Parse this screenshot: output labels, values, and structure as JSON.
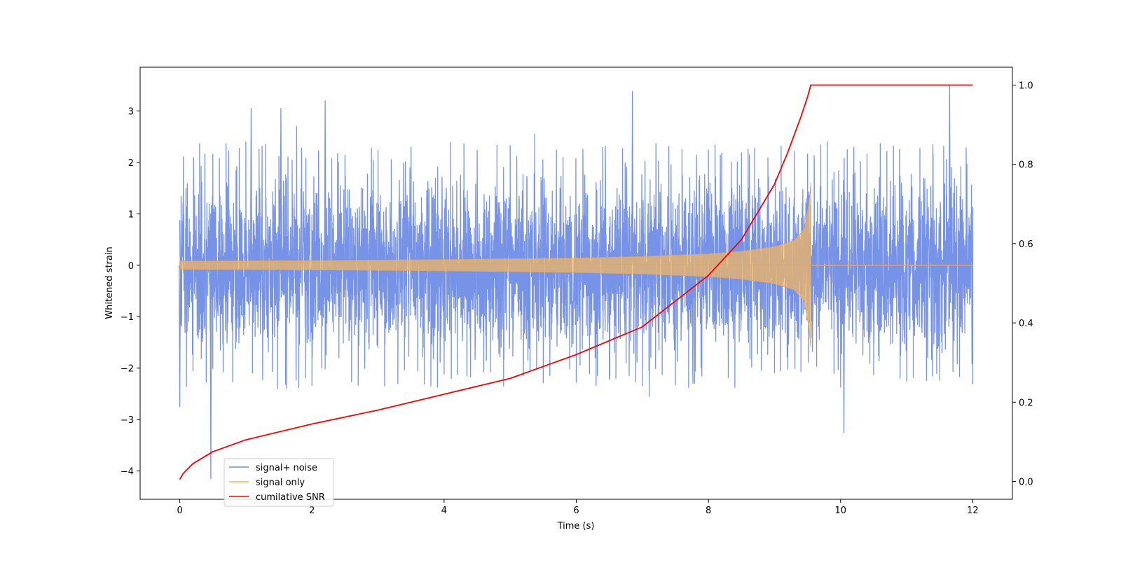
{
  "chart_data": {
    "type": "line",
    "title": "",
    "xlabel": "Time (s)",
    "ylabel": "Whitened strain",
    "y2label": "",
    "xlim": [
      -0.6,
      12.6
    ],
    "ylim": [
      -4.55,
      3.85
    ],
    "y2lim": [
      -0.045,
      1.045
    ],
    "xticks": [
      0,
      2,
      4,
      6,
      8,
      10,
      12
    ],
    "xtick_labels": [
      "0",
      "2",
      "4",
      "6",
      "8",
      "10",
      "12"
    ],
    "yticks": [
      -4,
      -3,
      -2,
      -1,
      0,
      1,
      2,
      3
    ],
    "ytick_labels": [
      "−4",
      "−3",
      "−2",
      "−1",
      "0",
      "1",
      "2",
      "3"
    ],
    "y2ticks": [
      0.0,
      0.2,
      0.4,
      0.6,
      0.8,
      1.0
    ],
    "y2tick_labels": [
      "0.0",
      "0.2",
      "0.4",
      "0.6",
      "0.8",
      "1.0"
    ],
    "grid": false,
    "legend_position": "lower-left",
    "merger_time": 9.55,
    "series": [
      {
        "name": "signal+ noise",
        "color": "#6b8ae6",
        "axis": "left",
        "description_level": "noise band approx. -2.3 to 2.4 with spikes",
        "notable_points": [
          {
            "x": 0.0,
            "y": -2.75
          },
          {
            "x": 0.47,
            "y": -4.15
          },
          {
            "x": 1.08,
            "y": 3.05
          },
          {
            "x": 1.53,
            "y": 3.05
          },
          {
            "x": 2.2,
            "y": 3.2
          },
          {
            "x": 6.85,
            "y": 3.38
          },
          {
            "x": 10.05,
            "y": -3.25
          },
          {
            "x": 11.65,
            "y": 3.5
          }
        ]
      },
      {
        "name": "signal only",
        "color": "#f5b55a",
        "axis": "left",
        "envelope": [
          {
            "x": 0.0,
            "amp": 0.08
          },
          {
            "x": 2.0,
            "amp": 0.09
          },
          {
            "x": 4.0,
            "amp": 0.11
          },
          {
            "x": 6.0,
            "amp": 0.14
          },
          {
            "x": 7.0,
            "amp": 0.17
          },
          {
            "x": 8.0,
            "amp": 0.22
          },
          {
            "x": 8.5,
            "amp": 0.27
          },
          {
            "x": 9.0,
            "amp": 0.36
          },
          {
            "x": 9.3,
            "amp": 0.48
          },
          {
            "x": 9.45,
            "amp": 0.7
          },
          {
            "x": 9.52,
            "amp": 1.2
          },
          {
            "x": 9.55,
            "amp": 1.6
          },
          {
            "x": 9.56,
            "amp": 0.0
          },
          {
            "x": 12.0,
            "amp": 0.0
          }
        ]
      },
      {
        "name": "cumilative SNR",
        "color": "#ff0000",
        "axis": "right",
        "x": [
          0.0,
          0.05,
          0.2,
          0.5,
          1.0,
          2.0,
          3.0,
          4.0,
          5.0,
          6.0,
          7.0,
          8.0,
          8.5,
          9.0,
          9.2,
          9.4,
          9.5,
          9.55,
          9.6,
          12.0
        ],
        "y": [
          0.005,
          0.02,
          0.045,
          0.075,
          0.105,
          0.145,
          0.18,
          0.22,
          0.26,
          0.32,
          0.39,
          0.52,
          0.61,
          0.75,
          0.83,
          0.92,
          0.97,
          1.0,
          1.0,
          1.0
        ]
      }
    ]
  }
}
